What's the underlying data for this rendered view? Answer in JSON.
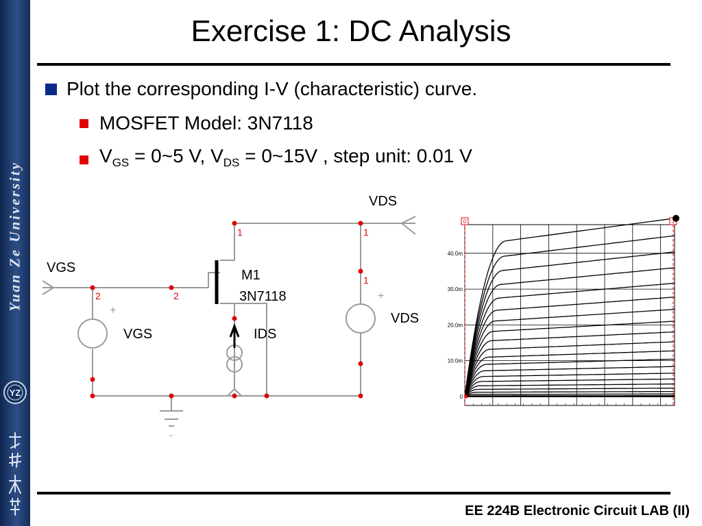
{
  "slide": {
    "title": "Exercise 1: DC Analysis",
    "footer": "EE 224B Electronic Circuit LAB (II)"
  },
  "sidebar": {
    "vertical_text": "Yuan Ze University",
    "logo_text": "元智大學",
    "background_color": "#1e3a6e"
  },
  "bullets": {
    "main": "Plot the corresponding I-V (characteristic) curve.",
    "model": "MOSFET Model: 3N7118",
    "range": {
      "v1": "V",
      "sub1": "GS",
      "mid": " = 0~5 V, V",
      "sub2": "DS",
      "end": " = 0~15V , step unit: 0.01 V"
    }
  },
  "circuit": {
    "vds_top_label": "VDS",
    "vgs_port_label": "VGS",
    "vgs_source_label": "VGS",
    "vds_source_label": "VDS",
    "transistor_name": "M1",
    "transistor_model": "3N7118",
    "current_probe_label": "IDS",
    "node_1": "1",
    "node_2": "2",
    "plus_sign": "+",
    "minus_sign": "−"
  },
  "chart_data": {
    "type": "line",
    "title": "",
    "xlabel": "",
    "ylabel": "",
    "xlim": [
      0,
      15
    ],
    "ylim": [
      -2.5,
      48
    ],
    "y_ticks": [
      0,
      10,
      20,
      30,
      40
    ],
    "y_tick_labels": [
      "0",
      "10.0m",
      "20.0m",
      "30.0m",
      "40.0m"
    ],
    "cursor_labels": [
      "0",
      "1"
    ],
    "grid": true,
    "saturation_currents": [
      43.5,
      39.2,
      35.2,
      31.3,
      27.5,
      24.1,
      21.1,
      18.2,
      15.6,
      13.2,
      11.0,
      9.0,
      7.2,
      5.6,
      4.2,
      3.0,
      2.0,
      1.2,
      0.6,
      0.2
    ]
  }
}
